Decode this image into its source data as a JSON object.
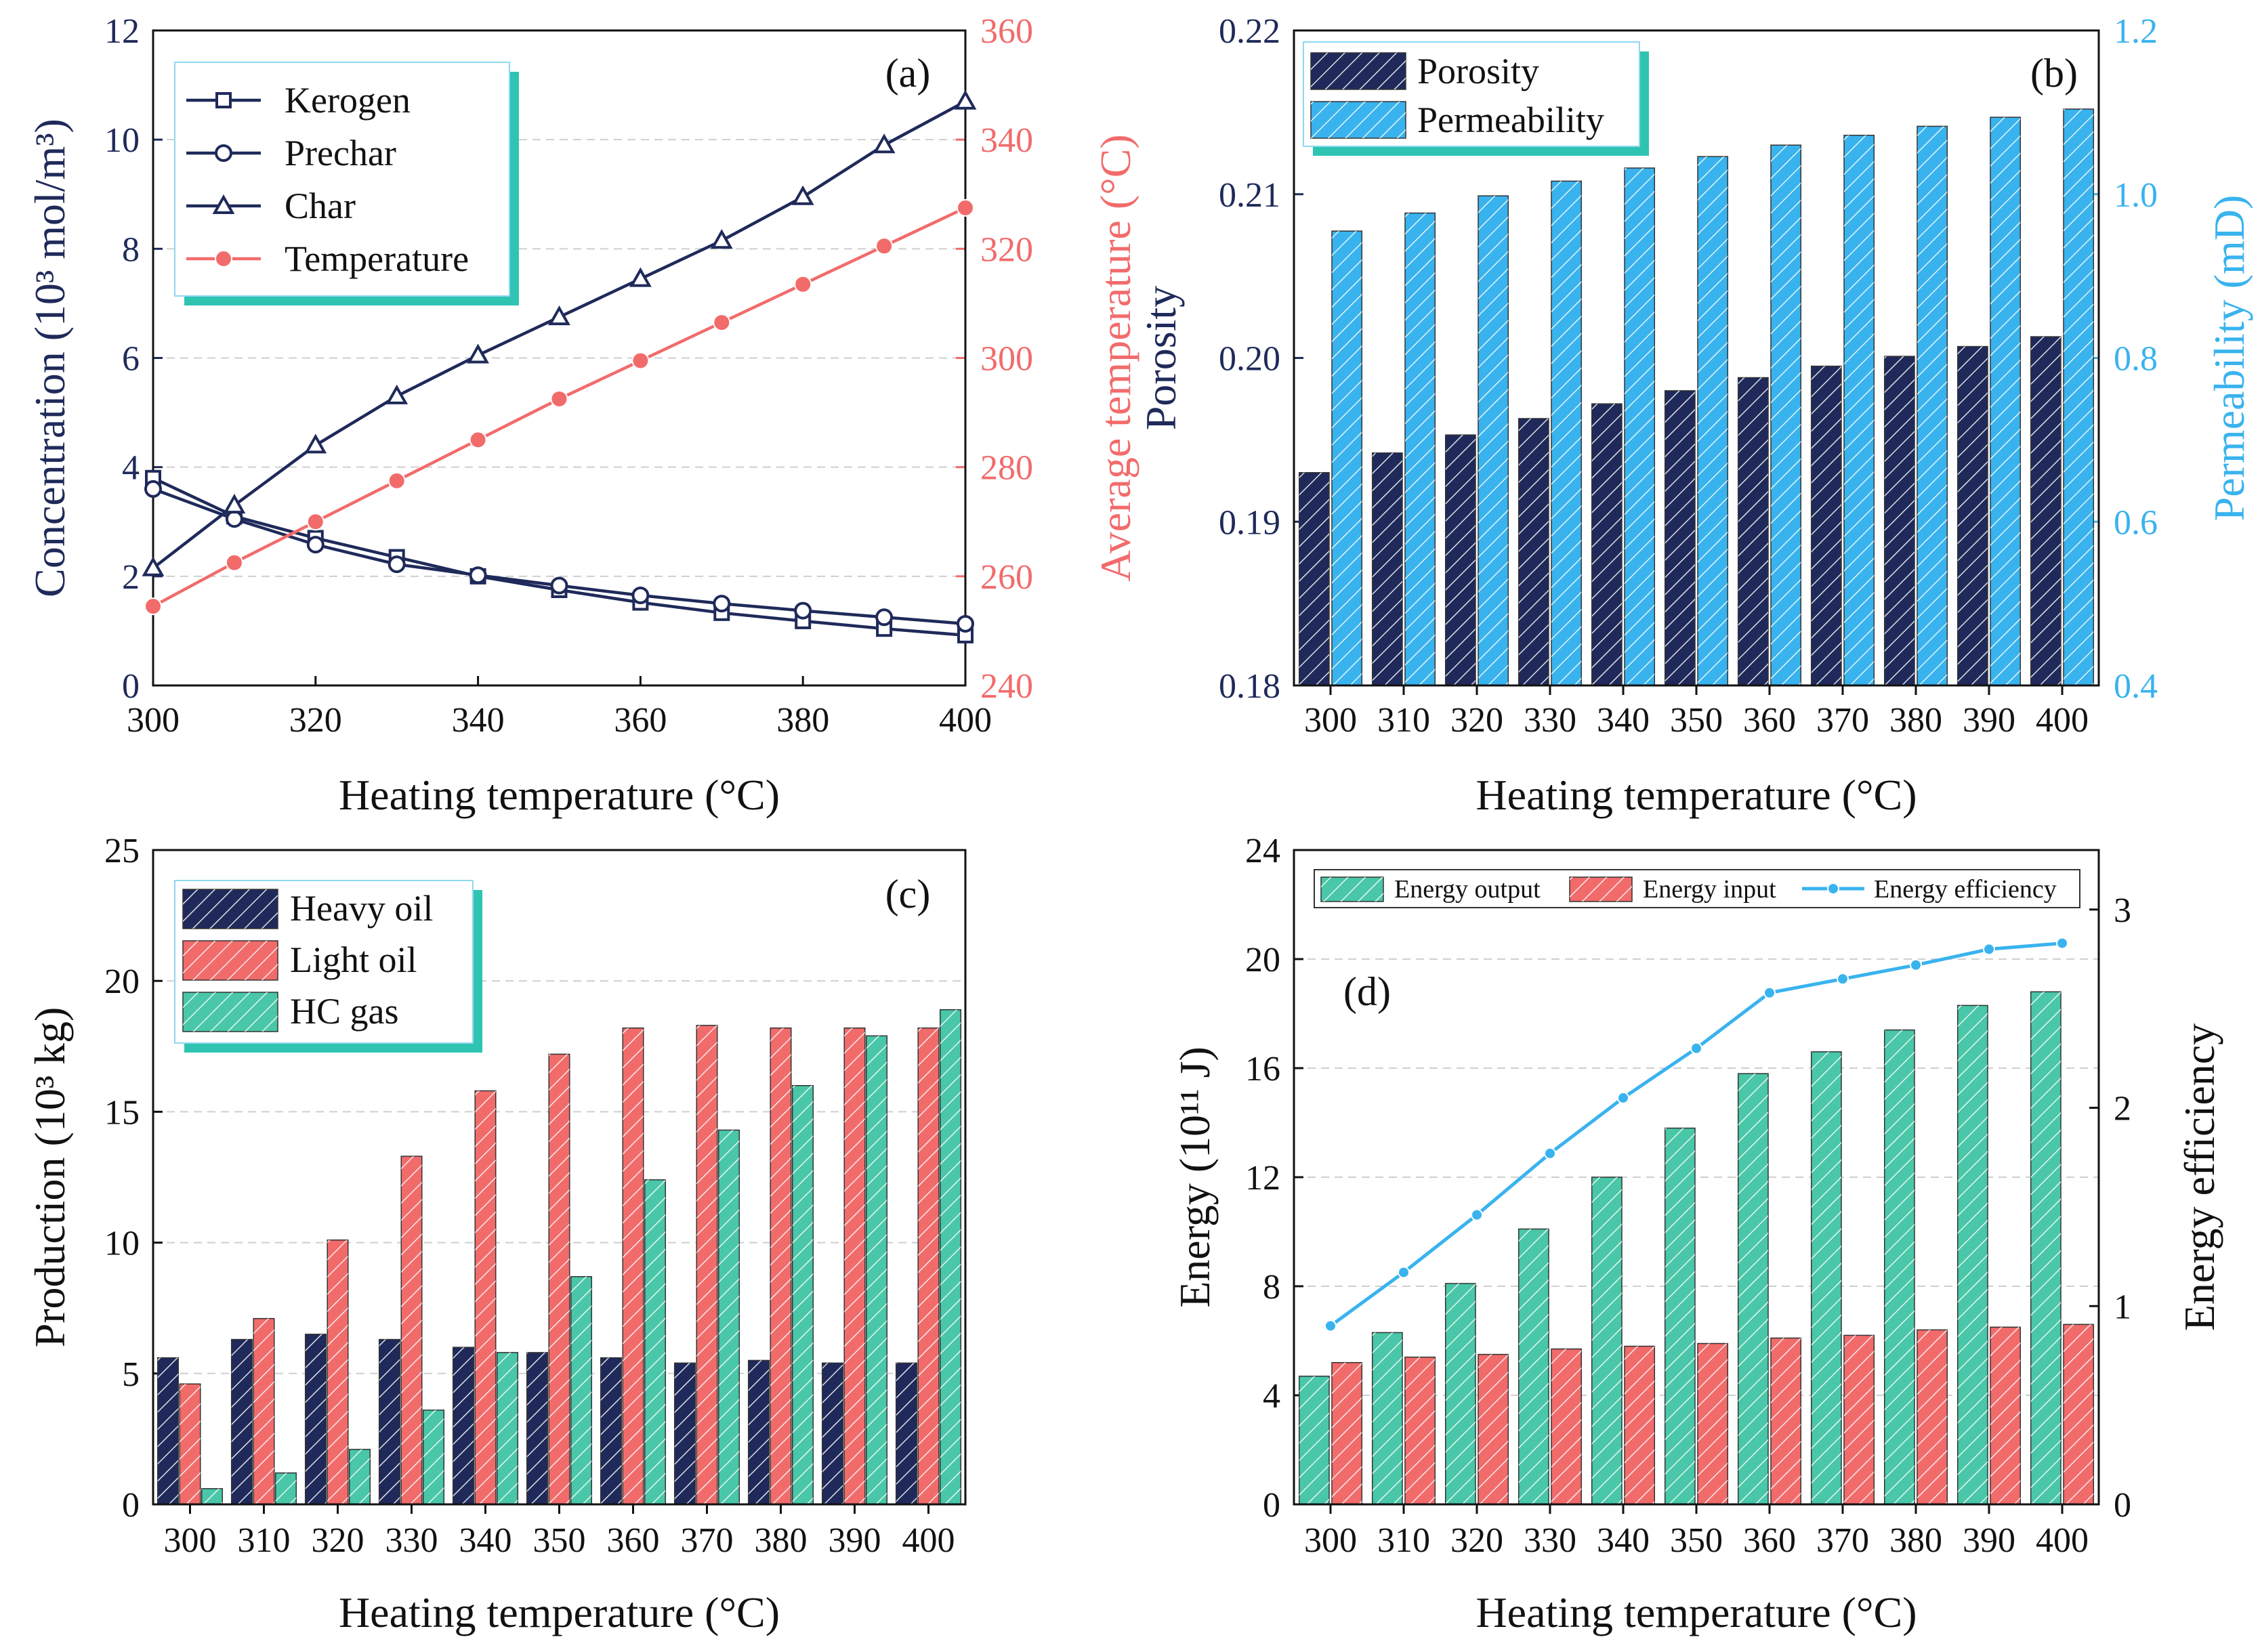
{
  "colors": {
    "navy": "#1f2a5a",
    "salmon": "#f26b6b",
    "sky": "#39b3ee",
    "teal": "#49c7a8",
    "legend_shadow": "#2fc4b2",
    "legend_border": "#8fd8f2",
    "grid": "#cfcfcf"
  },
  "chart_data": [
    {
      "type": "line",
      "panel_label": "(a)",
      "xlabel": "Heating temperature (°C)",
      "ylabel_left": "Concentration (10³ mol/m³)",
      "ylabel_right": "Average temperature (°C)",
      "x": [
        300,
        310,
        320,
        330,
        340,
        350,
        360,
        370,
        380,
        390,
        400
      ],
      "xlim": [
        300,
        400
      ],
      "xticks": [
        "300",
        "320",
        "340",
        "360",
        "380",
        "400"
      ],
      "ylim_left": [
        0,
        12
      ],
      "yticks_left": [
        "0",
        "2",
        "4",
        "6",
        "8",
        "10",
        "12"
      ],
      "ylim_right": [
        240,
        360
      ],
      "yticks_right": [
        "240",
        "260",
        "280",
        "300",
        "320",
        "340",
        "360"
      ],
      "series": [
        {
          "name": "Kerogen",
          "axis": "left",
          "marker": "square",
          "values": [
            3.8,
            3.1,
            2.7,
            2.35,
            2.0,
            1.75,
            1.52,
            1.33,
            1.18,
            1.04,
            0.92
          ]
        },
        {
          "name": "Prechar",
          "axis": "left",
          "marker": "circle",
          "values": [
            3.6,
            3.05,
            2.58,
            2.22,
            2.02,
            1.83,
            1.65,
            1.5,
            1.37,
            1.25,
            1.13
          ]
        },
        {
          "name": "Char",
          "axis": "left",
          "marker": "triangle",
          "values": [
            2.15,
            3.3,
            4.4,
            5.3,
            6.05,
            6.75,
            7.45,
            8.15,
            8.95,
            9.9,
            10.7
          ]
        },
        {
          "name": "Temperature",
          "axis": "right",
          "marker": "filled-circle",
          "values": [
            254.5,
            262.5,
            270,
            277.5,
            285,
            292.5,
            299.5,
            306.5,
            313.5,
            320.5,
            327.5
          ]
        }
      ]
    },
    {
      "type": "bar",
      "panel_label": "(b)",
      "xlabel": "Heating temperature (°C)",
      "ylabel_left": "Porosity",
      "ylabel_right": "Permeability (mD)",
      "categories": [
        "300",
        "310",
        "320",
        "330",
        "340",
        "350",
        "360",
        "370",
        "380",
        "390",
        "400"
      ],
      "ylim_left": [
        0.18,
        0.22
      ],
      "yticks_left": [
        "0.18",
        "0.19",
        "0.20",
        "0.21",
        "0.22"
      ],
      "ylim_right": [
        0.4,
        1.2
      ],
      "yticks_right": [
        "0.4",
        "0.6",
        "0.8",
        "1.0",
        "1.2"
      ],
      "series": [
        {
          "name": "Porosity",
          "axis": "left",
          "values": [
            0.193,
            0.1942,
            0.1953,
            0.1963,
            0.1972,
            0.198,
            0.1988,
            0.1995,
            0.2001,
            0.2007,
            0.2013
          ]
        },
        {
          "name": "Permeability",
          "axis": "right",
          "values": [
            0.955,
            0.977,
            0.998,
            1.016,
            1.032,
            1.046,
            1.06,
            1.072,
            1.083,
            1.094,
            1.104
          ]
        }
      ]
    },
    {
      "type": "bar",
      "panel_label": "(c)",
      "xlabel": "Heating temperature (°C)",
      "ylabel": "Production (10³ kg)",
      "categories": [
        "300",
        "310",
        "320",
        "330",
        "340",
        "350",
        "360",
        "370",
        "380",
        "390",
        "400"
      ],
      "ylim": [
        0,
        25
      ],
      "yticks": [
        "0",
        "5",
        "10",
        "15",
        "20",
        "25"
      ],
      "series": [
        {
          "name": "Heavy oil",
          "values": [
            5.6,
            6.3,
            6.5,
            6.3,
            6.0,
            5.8,
            5.6,
            5.4,
            5.5,
            5.4,
            5.4
          ]
        },
        {
          "name": "Light oil",
          "values": [
            4.6,
            7.1,
            10.1,
            13.3,
            15.8,
            17.2,
            18.2,
            18.3,
            18.2,
            18.2,
            18.2
          ]
        },
        {
          "name": "HC gas",
          "values": [
            0.6,
            1.2,
            2.1,
            3.6,
            5.8,
            8.7,
            12.4,
            14.3,
            16.0,
            17.9,
            18.9
          ]
        }
      ]
    },
    {
      "type": "bar",
      "panel_label": "(d)",
      "xlabel": "Heating temperature (°C)",
      "ylabel_left": "Energy (10¹¹ J)",
      "ylabel_right": "Energy efficiency",
      "categories": [
        "300",
        "310",
        "320",
        "330",
        "340",
        "350",
        "360",
        "370",
        "380",
        "390",
        "400"
      ],
      "ylim_left": [
        0,
        24
      ],
      "yticks_left": [
        "0",
        "4",
        "8",
        "12",
        "16",
        "20",
        "24"
      ],
      "ylim_right": [
        0,
        3.3
      ],
      "yticks_right": [
        "0",
        "1",
        "2",
        "3"
      ],
      "series": [
        {
          "name": "Energy output",
          "type": "bar",
          "axis": "left",
          "values": [
            4.7,
            6.3,
            8.1,
            10.1,
            12.0,
            13.8,
            15.8,
            16.6,
            17.4,
            18.3,
            18.8
          ]
        },
        {
          "name": "Energy input",
          "type": "bar",
          "axis": "left",
          "values": [
            5.2,
            5.4,
            5.5,
            5.7,
            5.8,
            5.9,
            6.1,
            6.2,
            6.4,
            6.5,
            6.6
          ]
        },
        {
          "name": "Energy efficiency",
          "type": "line",
          "axis": "right",
          "values": [
            0.9,
            1.17,
            1.46,
            1.77,
            2.05,
            2.3,
            2.58,
            2.65,
            2.72,
            2.8,
            2.83
          ]
        }
      ]
    }
  ]
}
